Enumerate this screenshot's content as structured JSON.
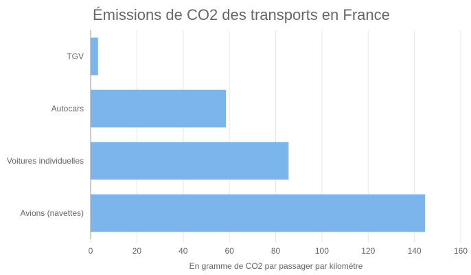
{
  "chart_data": {
    "type": "bar",
    "orientation": "horizontal",
    "title": "Émissions de CO2 des transports en France",
    "xlabel": "En gramme de CO2 par passager par kilomètre",
    "ylabel": "",
    "categories": [
      "TGV",
      "Autocars",
      "Voitures individuelles",
      "Avions (navettes)"
    ],
    "values": [
      3.2,
      58.5,
      85.6,
      144.6
    ],
    "xlim": [
      0,
      160
    ],
    "xticks": [
      "0",
      "20",
      "40",
      "60",
      "80",
      "100",
      "120",
      "140",
      "160"
    ],
    "grid": true,
    "legend": "none",
    "colors": {
      "bar": "#7cb5ec",
      "grid": "#e6e6e6",
      "axis": "#999999",
      "text": "#666666"
    }
  }
}
